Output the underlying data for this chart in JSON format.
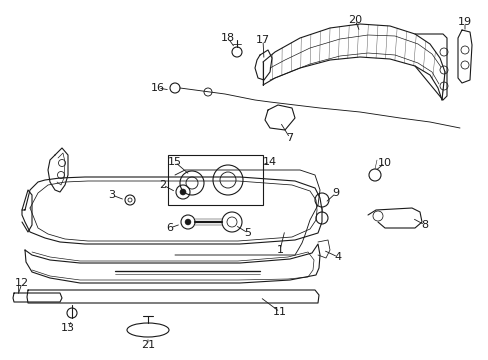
{
  "background_color": "#ffffff",
  "line_color": "#1a1a1a",
  "fig_w": 4.89,
  "fig_h": 3.6,
  "dpi": 100
}
